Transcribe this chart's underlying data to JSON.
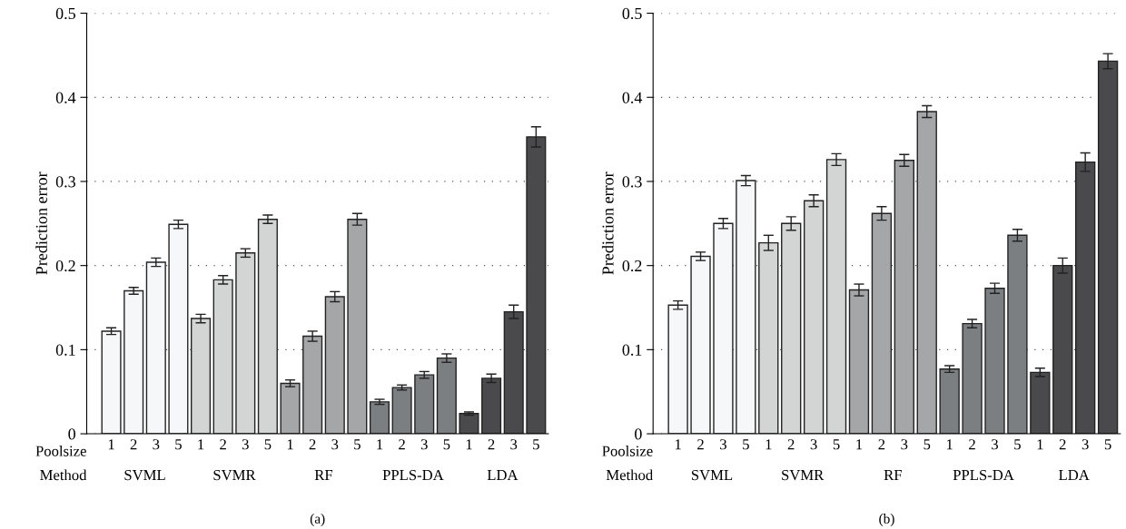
{
  "chart_data": [
    {
      "type": "bar",
      "ylabel": "Prediction error",
      "categories": [
        "1",
        "2",
        "3",
        "5",
        "1",
        "2",
        "3",
        "5",
        "1",
        "2",
        "3",
        "5",
        "1",
        "2",
        "3",
        "5",
        "1",
        "2",
        "3",
        "5"
      ],
      "values": [
        0.122,
        0.17,
        0.204,
        0.249,
        0.137,
        0.183,
        0.215,
        0.255,
        0.06,
        0.116,
        0.163,
        0.255,
        0.038,
        0.055,
        0.07,
        0.09,
        0.024,
        0.066,
        0.145,
        0.353
      ],
      "errors": [
        0.004,
        0.004,
        0.005,
        0.005,
        0.005,
        0.005,
        0.005,
        0.005,
        0.004,
        0.006,
        0.006,
        0.007,
        0.003,
        0.003,
        0.004,
        0.005,
        0.002,
        0.005,
        0.008,
        0.012
      ],
      "colors": [
        "#f6f7f9",
        "#f6f7f9",
        "#f6f7f9",
        "#f6f7f9",
        "#d3d4d4",
        "#d3d4d4",
        "#d3d4d4",
        "#d3d4d4",
        "#a5a6a8",
        "#a5a6a8",
        "#a5a6a8",
        "#a5a6a8",
        "#7c7f82",
        "#7c7f82",
        "#7c7f82",
        "#7c7f82",
        "#4a4a4c",
        "#4a4a4c",
        "#4a4a4c",
        "#4a4a4c"
      ],
      "ylim": [
        0,
        0.5
      ],
      "yticks": [
        0,
        0.1,
        0.2,
        0.3,
        0.4,
        0.5
      ],
      "grid": "y",
      "annotations": [
        "Poolsize",
        "Method",
        "SVML",
        "SVMR",
        "RF",
        "PPLS-DA",
        "LDA",
        "(a)"
      ]
    },
    {
      "type": "bar",
      "ylabel": "Prediction error",
      "categories": [
        "1",
        "2",
        "3",
        "5",
        "1",
        "2",
        "3",
        "5",
        "1",
        "2",
        "3",
        "5",
        "1",
        "2",
        "3",
        "5",
        "1",
        "2",
        "3",
        "5"
      ],
      "values": [
        0.153,
        0.211,
        0.25,
        0.301,
        0.227,
        0.25,
        0.277,
        0.326,
        0.171,
        0.262,
        0.325,
        0.383,
        0.077,
        0.131,
        0.173,
        0.236,
        0.073,
        0.2,
        0.323,
        0.443
      ],
      "errors": [
        0.005,
        0.005,
        0.006,
        0.006,
        0.009,
        0.008,
        0.007,
        0.007,
        0.007,
        0.008,
        0.007,
        0.007,
        0.004,
        0.005,
        0.006,
        0.007,
        0.005,
        0.009,
        0.011,
        0.009
      ],
      "colors": [
        "#f6f7f9",
        "#f6f7f9",
        "#f6f7f9",
        "#f6f7f9",
        "#d3d4d4",
        "#d3d4d4",
        "#d3d4d4",
        "#d3d4d4",
        "#a5a6a8",
        "#a5a6a8",
        "#a5a6a8",
        "#a5a6a8",
        "#7c7f82",
        "#7c7f82",
        "#7c7f82",
        "#7c7f82",
        "#4a4a4c",
        "#4a4a4c",
        "#4a4a4c",
        "#4a4a4c"
      ],
      "ylim": [
        0,
        0.5
      ],
      "yticks": [
        0,
        0.1,
        0.2,
        0.3,
        0.4,
        0.5
      ],
      "grid": "y",
      "annotations": [
        "Poolsize",
        "Method",
        "SVML",
        "SVMR",
        "RF",
        "PPLS-DA",
        "LDA",
        "(b)"
      ]
    }
  ]
}
